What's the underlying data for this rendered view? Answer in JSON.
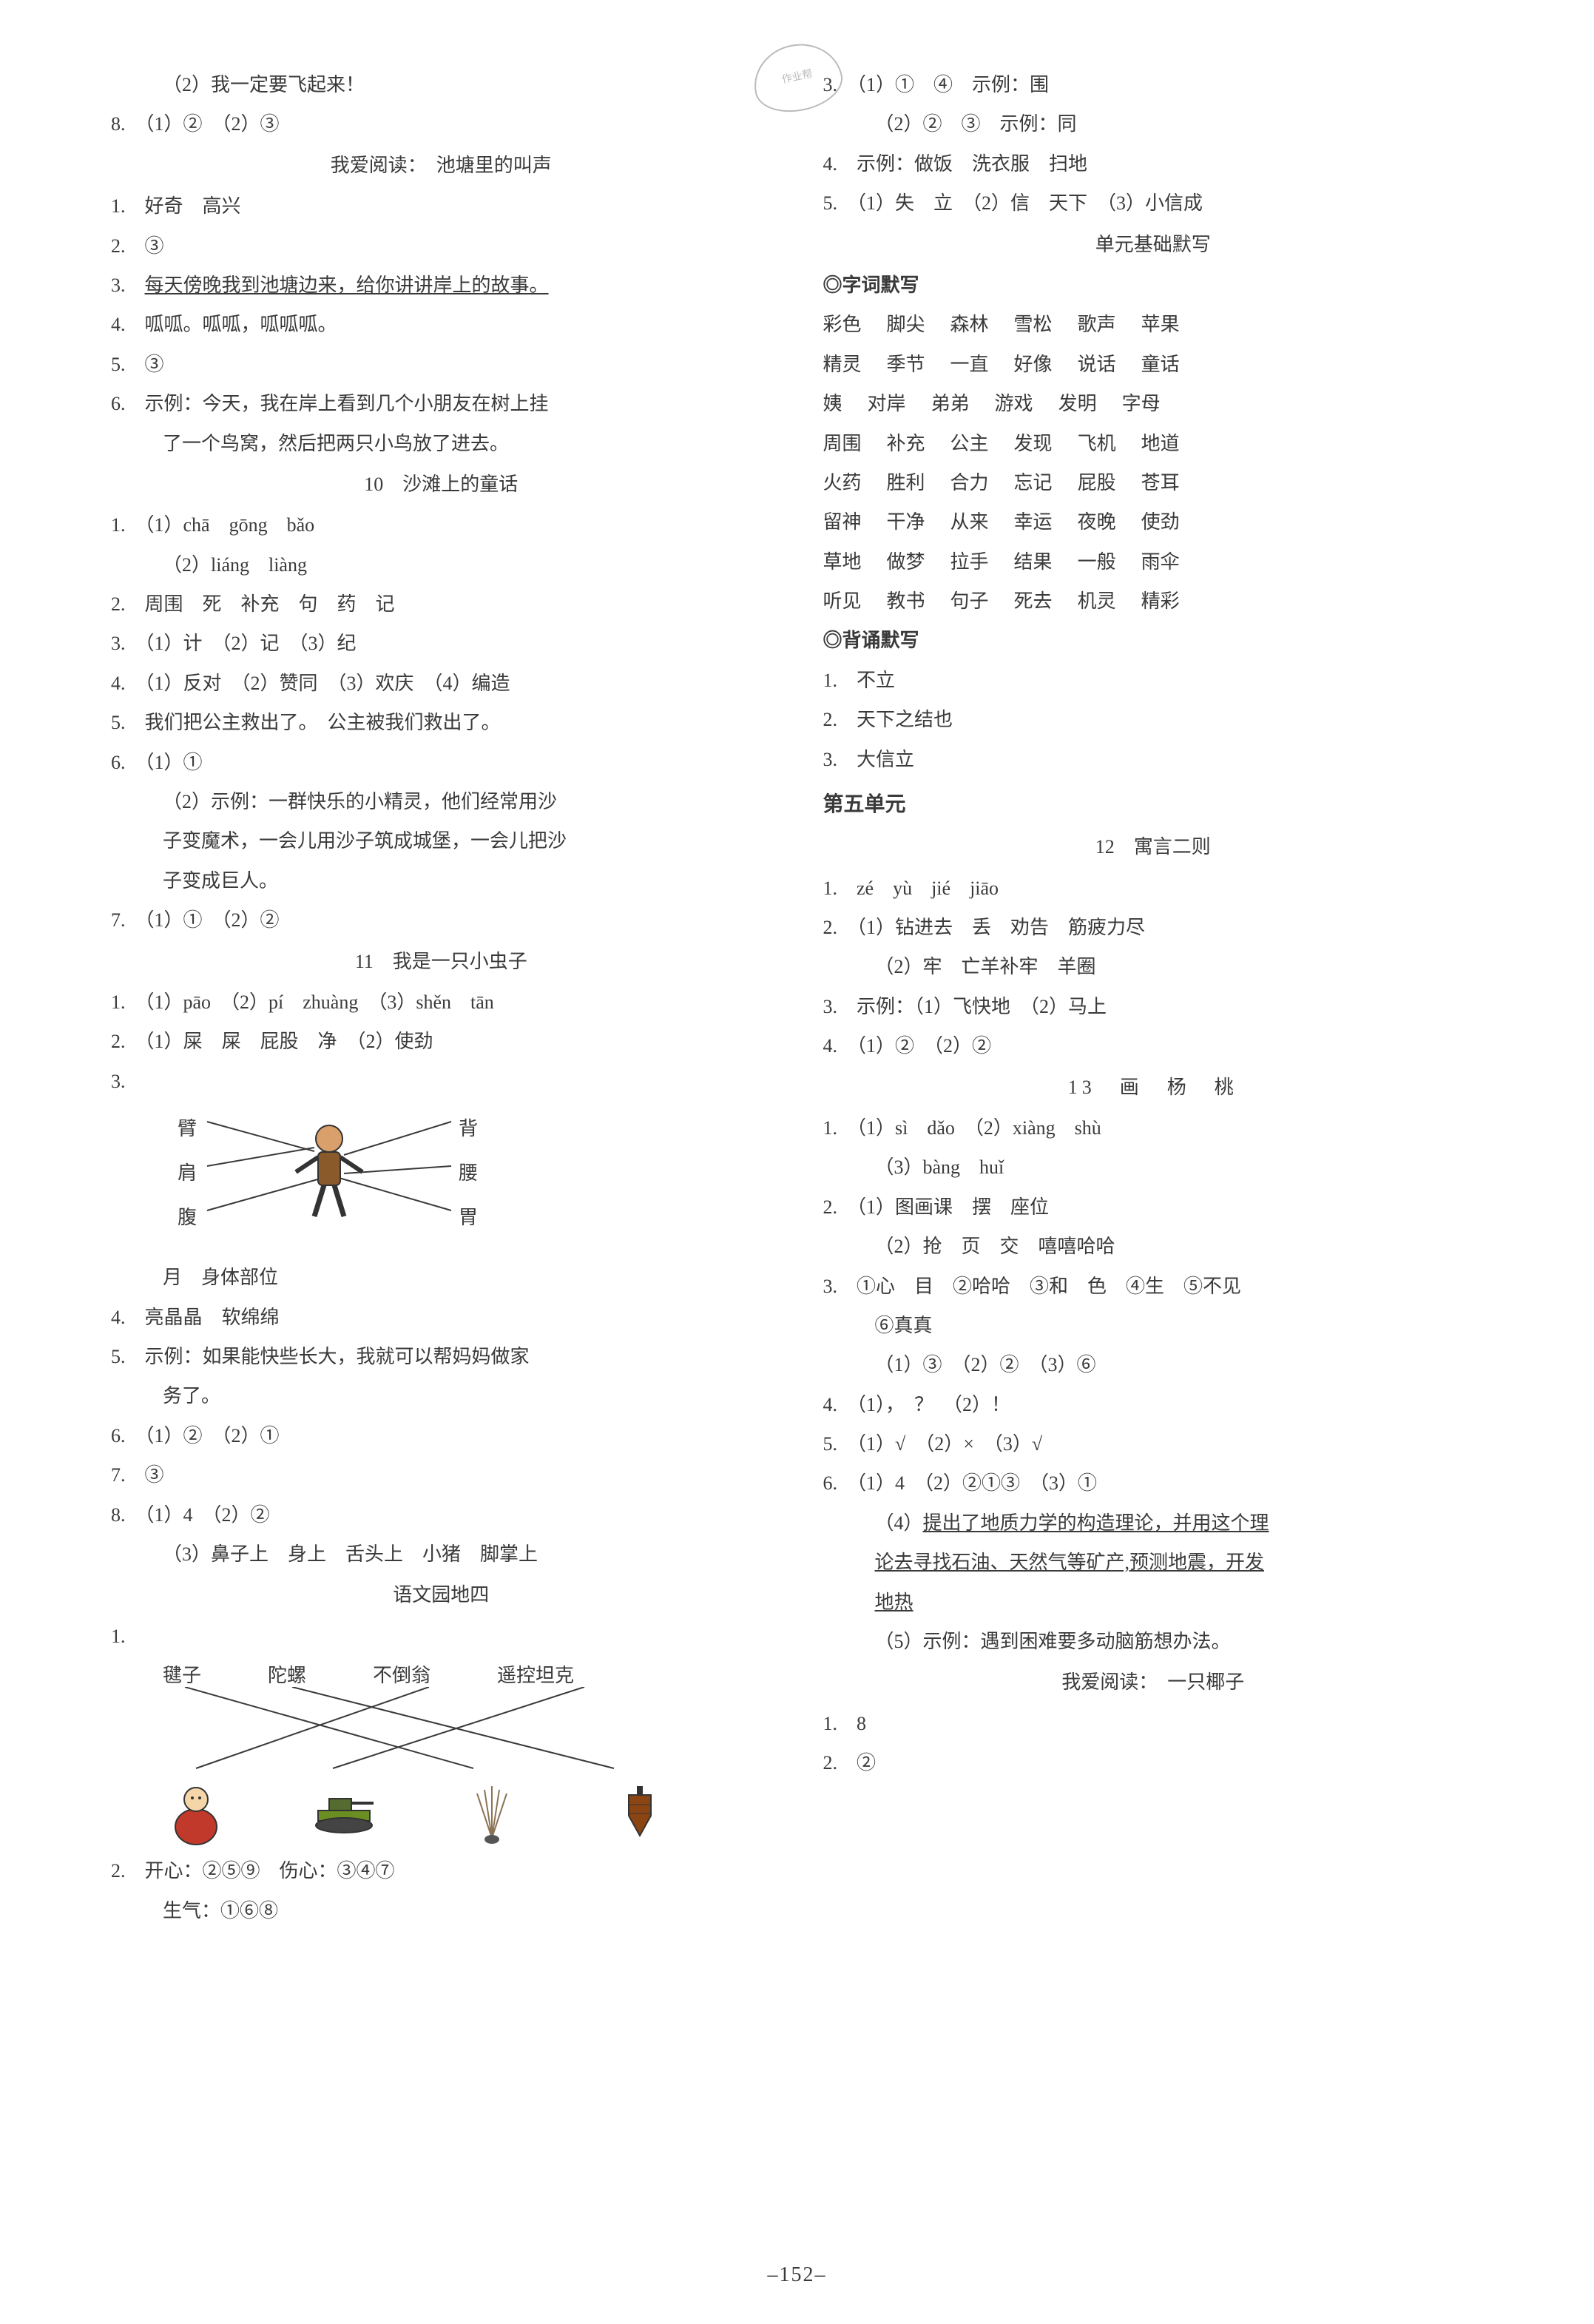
{
  "pageNumber": "–152–",
  "stampText": "作业帮",
  "left": {
    "top": {
      "l1": "（2）我一定要飞起来！",
      "l2": "8.　（1）②　（2）③"
    },
    "read1": {
      "title": "我爱阅读：　池塘里的叫声",
      "l1": "1.　好奇　高兴",
      "l2": "2.　③",
      "l3": "3.　",
      "l3u": "每天傍晚我到池塘边来，给你讲讲岸上的故事。",
      "l4": "4.　呱呱。呱呱，呱呱呱。",
      "l5": "5.　③",
      "l6a": "6.　示例：今天，我在岸上看到几个小朋友在树上挂",
      "l6b": "了一个鸟窝，然后把两只小鸟放了进去。"
    },
    "s10": {
      "title": "10　沙滩上的童话",
      "l1a": "1.　（1）chā　gōng　bǎo",
      "l1b": "（2）liáng　liàng",
      "l2": "2.　周围　死　补充　句　药　记",
      "l3": "3.　（1）计　（2）记　（3）纪",
      "l4": "4.　（1）反对　（2）赞同　（3）欢庆　（4）编造",
      "l5": "5.　我们把公主救出了。　公主被我们救出了。",
      "l6a": "6.　（1）①",
      "l6b": "（2）示例：一群快乐的小精灵，他们经常用沙",
      "l6c": "子变魔术，一会儿用沙子筑成城堡，一会儿把沙",
      "l6d": "子变成巨人。",
      "l7": "7.　（1）①　（2）②"
    },
    "s11": {
      "title": "11　我是一只小虫子",
      "l1": "1.　（1）pāo　（2）pí　zhuàng　（3）shěn　tān",
      "l2": "2.　（1）屎　屎　屁股　净　（2）使劲",
      "bodyLabels": {
        "bi": "臂",
        "bei": "背",
        "jian": "肩",
        "yao": "腰",
        "fu": "腹",
        "wei": "胃"
      },
      "l3foot": "月　身体部位",
      "l4": "4.　亮晶晶　软绵绵",
      "l5a": "5.　示例：如果能快些长大，我就可以帮妈妈做家",
      "l5b": "务了。",
      "l6": "6.　（1）②　（2）①",
      "l7": "7.　③",
      "l8a": "8.　（1）4　（2）②",
      "l8b": "（3）鼻子上　身上　舌头上　小猪　脚掌上"
    },
    "garden4": {
      "title": "语文园地四",
      "row1": {
        "a": "毽子",
        "b": "陀螺",
        "c": "不倒翁",
        "d": "遥控坦克"
      },
      "l2a": "2.　开心：②⑤⑨　伤心：③④⑦",
      "l2b": "生气：①⑥⑧"
    }
  },
  "right": {
    "top": {
      "l3a": "3.　（1）①　④　示例：围",
      "l3b": "（2）②　③　示例：同",
      "l4": "4.　示例：做饭　洗衣服　扫地",
      "l5": "5.　（1）失　立　（2）信　天下　（3）小信成"
    },
    "moxie": {
      "title": "单元基础默写",
      "sub1": "◎字词默写",
      "grid": [
        [
          "彩色",
          "脚尖",
          "森林",
          "雪松",
          "歌声",
          "苹果"
        ],
        [
          "精灵",
          "季节",
          "一直",
          "好像",
          "说话",
          "童话"
        ],
        [
          "姨",
          "对岸",
          "弟弟",
          "游戏",
          "发明",
          "字母"
        ],
        [
          "周围",
          "补充",
          "公主",
          "发现",
          "飞机",
          "地道"
        ],
        [
          "火药",
          "胜利",
          "合力",
          "忘记",
          "屁股",
          "苍耳"
        ],
        [
          "留神",
          "干净",
          "从来",
          "幸运",
          "夜晚",
          "使劲"
        ],
        [
          "草地",
          "做梦",
          "拉手",
          "结果",
          "一般",
          "雨伞"
        ],
        [
          "听见",
          "教书",
          "句子",
          "死去",
          "机灵",
          "精彩"
        ]
      ],
      "sub2": "◎背诵默写",
      "b1": "1.　不立",
      "b2": "2.　天下之结也",
      "b3": "3.　大信立"
    },
    "unit5": "第五单元",
    "s12": {
      "title": "12　寓言二则",
      "l1": "1.　zé　yù　jié　jiāo",
      "l2a": "2.　（1）钻进去　丢　劝告　筋疲力尽",
      "l2b": "（2）牢　亡羊补牢　羊圈",
      "l3": "3.　示例：（1）飞快地　（2）马上",
      "l4": "4.　（1）②　（2）②"
    },
    "s13": {
      "title": "13　画　杨　桃",
      "l1a": "1.　（1）sì　dǎo　（2）xiàng　shù",
      "l1b": "（3）bàng　huǐ",
      "l2a": "2.　（1）图画课　摆　座位",
      "l2b": "（2）抢　页　交　嘻嘻哈哈",
      "l3a": "3.　①心　目　②哈哈　③和　色　④生　⑤不见",
      "l3b": "⑥真真",
      "l3c": "（1）③　（2）②　（3）⑥",
      "l4": "4.　（1），　？　（2）！",
      "l5": "5.　（1）√　（2）×　（3）√",
      "l6a": "6.　（1）4　（2）②①③　（3）①",
      "l6b": "（4）",
      "l6bu1": "提出了地质力学的构造理论，并用这个理",
      "l6bu2": "论去寻找石油、天然气等矿产,预测地震，开发",
      "l6bu3": "地热",
      "l6c": "（5）示例：遇到困难要多动脑筋想办法。"
    },
    "read2": {
      "title": "我爱阅读：　一只椰子",
      "l1": "1.　8",
      "l2": "2.　②"
    }
  }
}
